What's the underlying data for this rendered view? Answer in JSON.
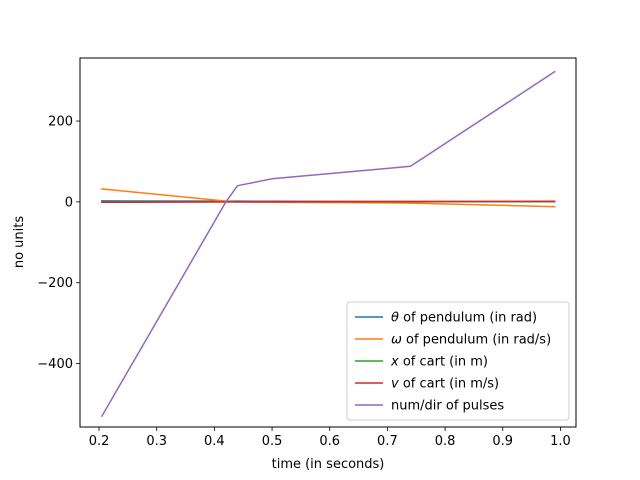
{
  "chart_data": {
    "type": "line",
    "title": "",
    "xlabel": "time (in seconds)",
    "ylabel": "no units",
    "xlim": [
      0.167,
      1.027
    ],
    "ylim": [
      -557,
      356
    ],
    "xticks": [
      0.2,
      0.3,
      0.4,
      0.5,
      0.6,
      0.7,
      0.8,
      0.9,
      1.0
    ],
    "xtick_labels": [
      "0.2",
      "0.3",
      "0.4",
      "0.5",
      "0.6",
      "0.7",
      "0.8",
      "0.9",
      "1.0"
    ],
    "yticks": [
      -400,
      -200,
      0,
      200
    ],
    "ytick_labels": [
      "−400",
      "−200",
      "0",
      "200"
    ],
    "grid": false,
    "legend_position": "lower-right",
    "series": [
      {
        "name_prefix": "θ",
        "name_suffix": " of pendulum (in rad)",
        "color": "#1f77b4",
        "x": [
          0.205,
          0.42,
          0.44,
          0.5,
          0.74,
          0.99
        ],
        "y": [
          2.5,
          2.0,
          2.0,
          1.5,
          1.0,
          0.5
        ]
      },
      {
        "name_prefix": "ω",
        "name_suffix": " of pendulum (in rad/s)",
        "color": "#ff7f0e",
        "x": [
          0.205,
          0.42,
          0.44,
          0.5,
          0.74,
          0.99
        ],
        "y": [
          32,
          2,
          0,
          -1,
          -3,
          -12
        ]
      },
      {
        "name_prefix": "x",
        "name_suffix": " of cart (in m)",
        "color": "#2ca02c",
        "x": [
          0.205,
          0.42,
          0.44,
          0.5,
          0.74,
          0.99
        ],
        "y": [
          0,
          0,
          0,
          0.2,
          0.5,
          0.8
        ]
      },
      {
        "name_prefix": "v",
        "name_suffix": " of cart  (in m/s)",
        "color": "#d62728",
        "x": [
          0.205,
          0.42,
          0.44,
          0.5,
          0.74,
          0.99
        ],
        "y": [
          -1,
          0,
          0,
          0.5,
          1,
          1.5
        ]
      },
      {
        "name_prefix": "",
        "name_suffix": "num/dir of pulses",
        "color": "#9467bd",
        "x": [
          0.205,
          0.42,
          0.44,
          0.5,
          0.74,
          0.99
        ],
        "y": [
          -530,
          0,
          40,
          57,
          88,
          322
        ]
      }
    ]
  }
}
